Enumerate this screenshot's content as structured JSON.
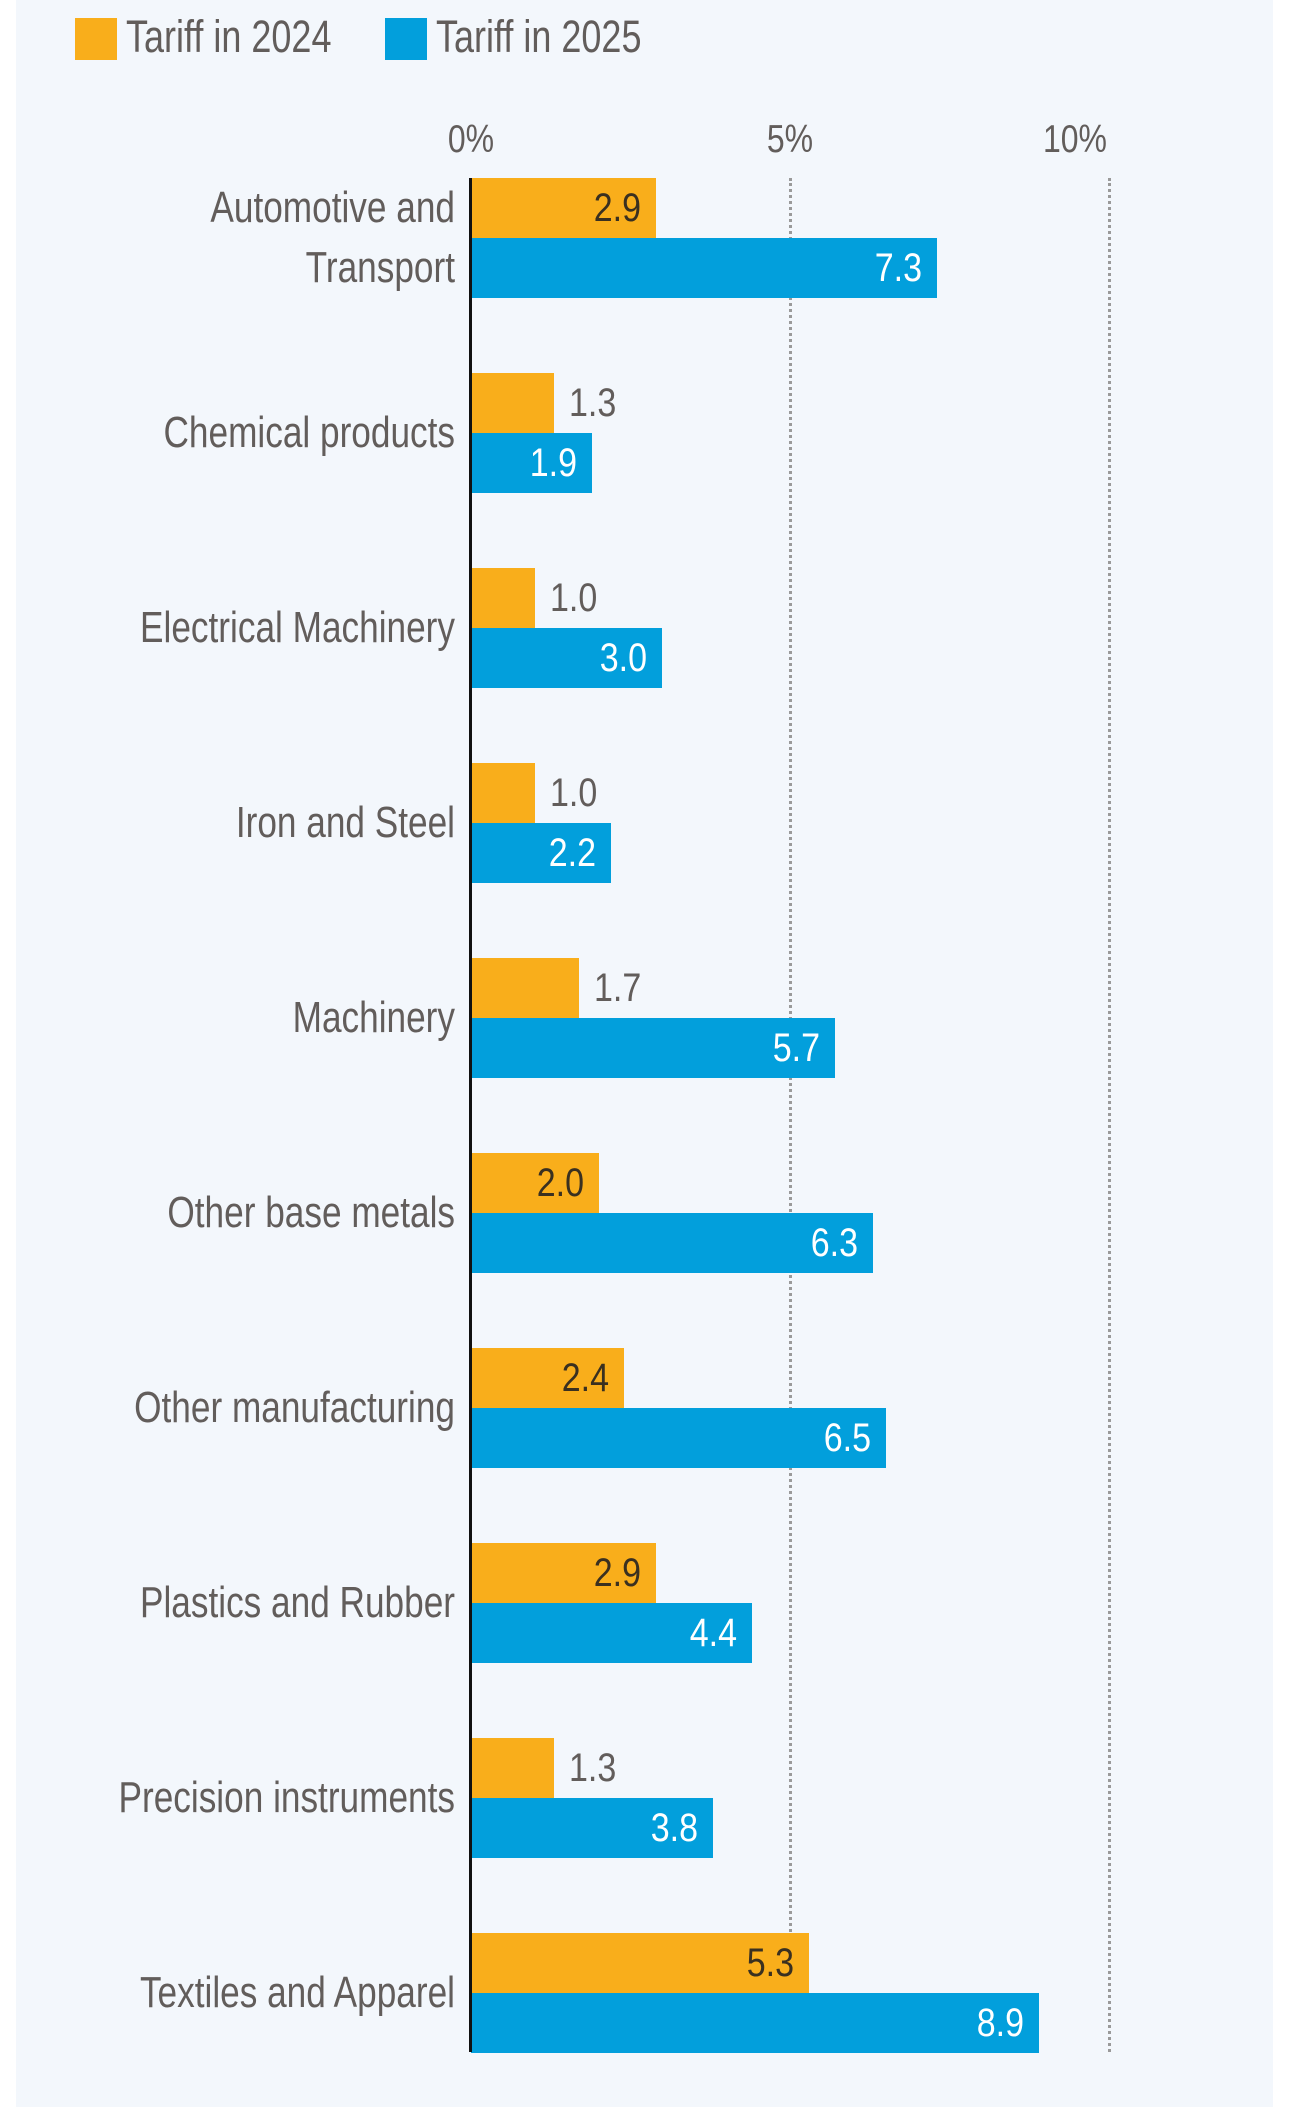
{
  "chart_data": {
    "type": "bar",
    "orientation": "horizontal",
    "title": "",
    "xlabel": "",
    "ylabel": "",
    "xlim": [
      0,
      10
    ],
    "x_ticks": [
      {
        "value": 0,
        "label": "0%"
      },
      {
        "value": 5,
        "label": "5%"
      },
      {
        "value": 10,
        "label": "10%"
      }
    ],
    "grid": "vertical dotted at 5% and 10%",
    "legend_position": "top-left",
    "categories": [
      [
        "Automotive and",
        "Transport"
      ],
      [
        "Chemical products"
      ],
      [
        "Electrical Machinery"
      ],
      [
        "Iron and Steel"
      ],
      [
        "Machinery"
      ],
      [
        "Other base metals"
      ],
      [
        "Other manufacturing"
      ],
      [
        "Plastics and Rubber"
      ],
      [
        "Precision instruments"
      ],
      [
        "Textiles and Apparel"
      ]
    ],
    "series": [
      {
        "name": "Tariff in 2024",
        "color": "#f9ae1b",
        "label_color": "#3a3020",
        "values": [
          2.9,
          1.3,
          1.0,
          1.0,
          1.7,
          2.0,
          2.4,
          2.9,
          1.3,
          5.3
        ],
        "labels": [
          "2.9",
          "1.3",
          "1.0",
          "1.0",
          "1.7",
          "2.0",
          "2.4",
          "2.9",
          "1.3",
          "5.3"
        ]
      },
      {
        "name": "Tariff in 2025",
        "color": "#029fdc",
        "label_color": "#ffffff",
        "values": [
          7.3,
          1.9,
          3.0,
          2.2,
          5.7,
          6.3,
          6.5,
          4.4,
          3.8,
          8.9
        ],
        "labels": [
          "7.3",
          "1.9",
          "3.0",
          "2.2",
          "5.7",
          "6.3",
          "6.5",
          "4.4",
          "3.8",
          "8.9"
        ]
      }
    ],
    "value_unit": "%"
  },
  "legend": {
    "items": [
      {
        "label": "Tariff in 2024",
        "color": "#f9ae1b"
      },
      {
        "label": "Tariff in 2025",
        "color": "#029fdc"
      }
    ]
  }
}
